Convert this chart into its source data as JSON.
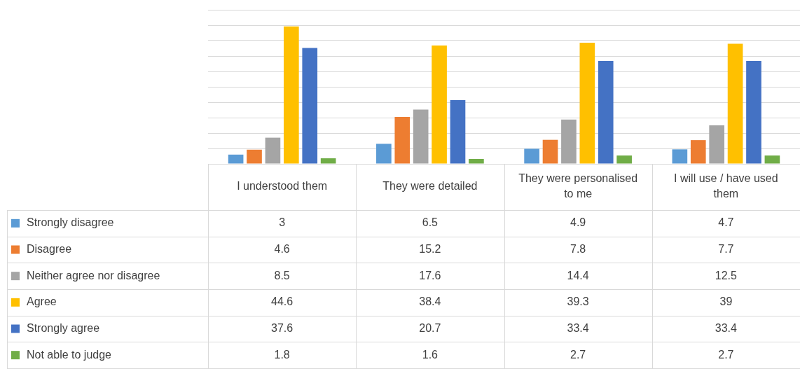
{
  "chart_data": {
    "type": "bar",
    "categories": [
      "I understood them",
      "They were detailed",
      "They were personalised to me",
      "I will use / have used them"
    ],
    "series": [
      {
        "name": "Strongly disagree",
        "color": "#5b9bd5",
        "values": [
          3,
          6.5,
          4.9,
          4.7
        ]
      },
      {
        "name": "Disagree",
        "color": "#ed7d31",
        "values": [
          4.6,
          15.2,
          7.8,
          7.7
        ]
      },
      {
        "name": "Neither agree nor disagree",
        "color": "#a5a5a5",
        "values": [
          8.5,
          17.6,
          14.4,
          12.5
        ]
      },
      {
        "name": "Agree",
        "color": "#ffc000",
        "values": [
          44.6,
          38.4,
          39.3,
          39
        ]
      },
      {
        "name": "Strongly agree",
        "color": "#4472c4",
        "values": [
          37.6,
          20.7,
          33.4,
          33.4
        ]
      },
      {
        "name": "Not able to judge",
        "color": "#70ad47",
        "values": [
          1.8,
          1.6,
          2.7,
          2.7
        ]
      }
    ],
    "ylim": [
      0,
      50
    ],
    "tick_labels": "x",
    "grid": "y",
    "legend": "bottom left",
    "data_labels": true
  }
}
